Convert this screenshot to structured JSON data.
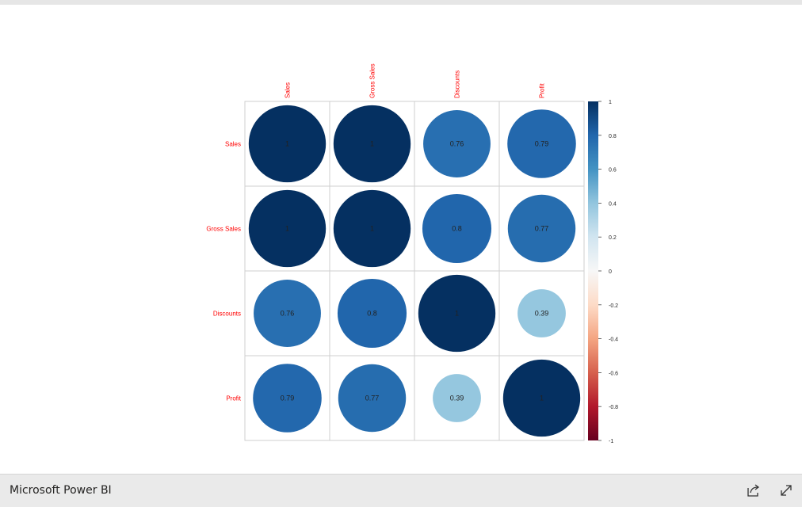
{
  "app": {
    "title": "Microsoft Power BI"
  },
  "footer": {
    "share_icon": "share-icon",
    "expand_icon": "expand-icon"
  },
  "chart_data": {
    "type": "heatmap",
    "subtype": "correlation-circles",
    "variables": [
      "Sales",
      "Gross Sales",
      "Discounts",
      "Profit"
    ],
    "matrix": [
      [
        1,
        1,
        0.76,
        0.79
      ],
      [
        1,
        1,
        0.8,
        0.77
      ],
      [
        0.76,
        0.8,
        1,
        0.39
      ],
      [
        0.79,
        0.77,
        0.39,
        1
      ]
    ],
    "labels": [
      [
        "1",
        "1",
        "0.76",
        "0.79"
      ],
      [
        "1",
        "1",
        "0.8",
        "0.77"
      ],
      [
        "0.76",
        "0.8",
        "1",
        "0.39"
      ],
      [
        "0.79",
        "0.77",
        "0.39",
        "1"
      ]
    ],
    "colorbar": {
      "range": [
        -1,
        1
      ],
      "ticks": [
        "1",
        "0.8",
        "0.6",
        "0.4",
        "0.2",
        "0",
        "-0.2",
        "-0.4",
        "-0.6",
        "-0.8",
        "-1"
      ],
      "stops": [
        "#67001f",
        "#b2182b",
        "#d6604d",
        "#f4a582",
        "#fddbc7",
        "#f7f7f7",
        "#d1e5f0",
        "#92c5de",
        "#4393c3",
        "#2166ac",
        "#053061"
      ]
    },
    "label_color": "#ff0000",
    "grid": true,
    "legend_placement": "right"
  }
}
